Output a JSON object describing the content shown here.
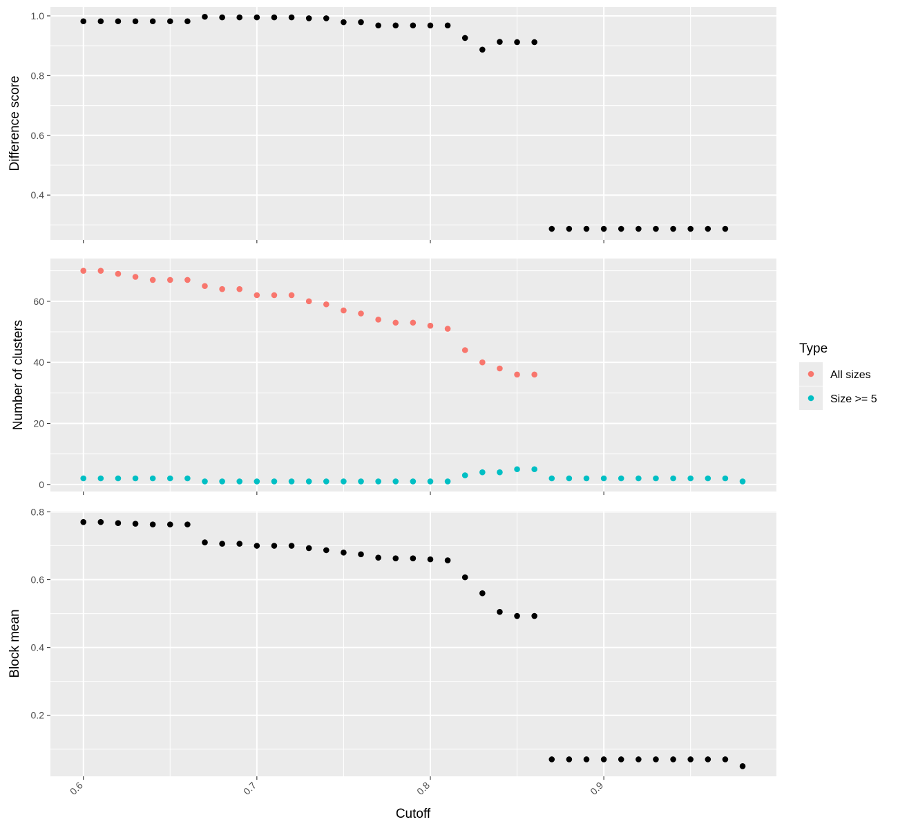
{
  "chart_data": {
    "type": "scatter",
    "xlabel": "Cutoff",
    "x_ticks": [
      "0.6",
      "0.7",
      "0.8",
      "0.9"
    ],
    "x_tick_values": [
      0.6,
      0.7,
      0.8,
      0.9
    ],
    "xlim": [
      0.581,
      0.9995
    ],
    "legend": {
      "title": "Type",
      "placement": "right",
      "entries": [
        {
          "label": "All sizes",
          "color": "#F8766D"
        },
        {
          "label": "Size >= 5",
          "color": "#00BFC4"
        }
      ]
    },
    "panels": [
      {
        "ylabel": "Difference score",
        "ylim": [
          0.25,
          1.03
        ],
        "y_ticks": [
          "0.4",
          "0.6",
          "0.8",
          "1.0"
        ],
        "y_tick_values": [
          0.4,
          0.6,
          0.8,
          1.0
        ],
        "series": [
          {
            "color": "#000000",
            "x": [
              0.6,
              0.61,
              0.62,
              0.63,
              0.64,
              0.65,
              0.66,
              0.67,
              0.68,
              0.69,
              0.7,
              0.71,
              0.72,
              0.73,
              0.74,
              0.75,
              0.76,
              0.77,
              0.78,
              0.79,
              0.8,
              0.81,
              0.82,
              0.83,
              0.84,
              0.85,
              0.86,
              0.87,
              0.88,
              0.89,
              0.9,
              0.91,
              0.92,
              0.93,
              0.94,
              0.95,
              0.96,
              0.97
            ],
            "y": [
              0.982,
              0.982,
              0.982,
              0.982,
              0.982,
              0.982,
              0.982,
              0.997,
              0.995,
              0.995,
              0.995,
              0.995,
              0.995,
              0.992,
              0.992,
              0.979,
              0.979,
              0.968,
              0.968,
              0.968,
              0.968,
              0.968,
              0.926,
              0.887,
              0.913,
              0.912,
              0.912,
              0.287,
              0.287,
              0.287,
              0.287,
              0.287,
              0.287,
              0.287,
              0.287,
              0.287,
              0.287,
              0.287
            ]
          }
        ]
      },
      {
        "ylabel": "Number of clusters",
        "ylim": [
          -2.3,
          74
        ],
        "y_ticks": [
          "0",
          "20",
          "40",
          "60"
        ],
        "y_tick_values": [
          0,
          20,
          40,
          60
        ],
        "series": [
          {
            "name": "All sizes",
            "color": "#F8766D",
            "x": [
              0.6,
              0.61,
              0.62,
              0.63,
              0.64,
              0.65,
              0.66,
              0.67,
              0.68,
              0.69,
              0.7,
              0.71,
              0.72,
              0.73,
              0.74,
              0.75,
              0.76,
              0.77,
              0.78,
              0.79,
              0.8,
              0.81,
              0.82,
              0.83,
              0.84,
              0.85,
              0.86
            ],
            "y": [
              70,
              70,
              69,
              68,
              67,
              67,
              67,
              65,
              64,
              64,
              62,
              62,
              62,
              60,
              59,
              57,
              56,
              54,
              53,
              53,
              52,
              51,
              44,
              40,
              38,
              36,
              36
            ]
          },
          {
            "name": "Size >= 5",
            "color": "#00BFC4",
            "x": [
              0.6,
              0.61,
              0.62,
              0.63,
              0.64,
              0.65,
              0.66,
              0.67,
              0.68,
              0.69,
              0.7,
              0.71,
              0.72,
              0.73,
              0.74,
              0.75,
              0.76,
              0.77,
              0.78,
              0.79,
              0.8,
              0.81,
              0.82,
              0.83,
              0.84,
              0.85,
              0.86,
              0.87,
              0.88,
              0.89,
              0.9,
              0.91,
              0.92,
              0.93,
              0.94,
              0.95,
              0.96,
              0.97,
              0.98
            ],
            "y": [
              2,
              2,
              2,
              2,
              2,
              2,
              2,
              1,
              1,
              1,
              1,
              1,
              1,
              1,
              1,
              1,
              1,
              1,
              1,
              1,
              1,
              1,
              3,
              4,
              4,
              5,
              5,
              2,
              2,
              2,
              2,
              2,
              2,
              2,
              2,
              2,
              2,
              2,
              1
            ]
          }
        ]
      },
      {
        "ylabel": "Block mean",
        "ylim": [
          0.02,
          0.803
        ],
        "y_ticks": [
          "0.2",
          "0.4",
          "0.6",
          "0.8"
        ],
        "y_tick_values": [
          0.2,
          0.4,
          0.6,
          0.8
        ],
        "series": [
          {
            "color": "#000000",
            "x": [
              0.6,
              0.61,
              0.62,
              0.63,
              0.64,
              0.65,
              0.66,
              0.67,
              0.68,
              0.69,
              0.7,
              0.71,
              0.72,
              0.73,
              0.74,
              0.75,
              0.76,
              0.77,
              0.78,
              0.79,
              0.8,
              0.81,
              0.82,
              0.83,
              0.84,
              0.85,
              0.86,
              0.87,
              0.88,
              0.89,
              0.9,
              0.91,
              0.92,
              0.93,
              0.94,
              0.95,
              0.96,
              0.97,
              0.98
            ],
            "y": [
              0.77,
              0.77,
              0.767,
              0.765,
              0.763,
              0.763,
              0.763,
              0.71,
              0.706,
              0.706,
              0.7,
              0.7,
              0.7,
              0.693,
              0.687,
              0.68,
              0.675,
              0.665,
              0.663,
              0.663,
              0.66,
              0.657,
              0.607,
              0.56,
              0.505,
              0.493,
              0.493,
              0.07,
              0.07,
              0.07,
              0.07,
              0.07,
              0.07,
              0.07,
              0.07,
              0.07,
              0.07,
              0.07,
              0.05
            ]
          }
        ]
      }
    ]
  }
}
